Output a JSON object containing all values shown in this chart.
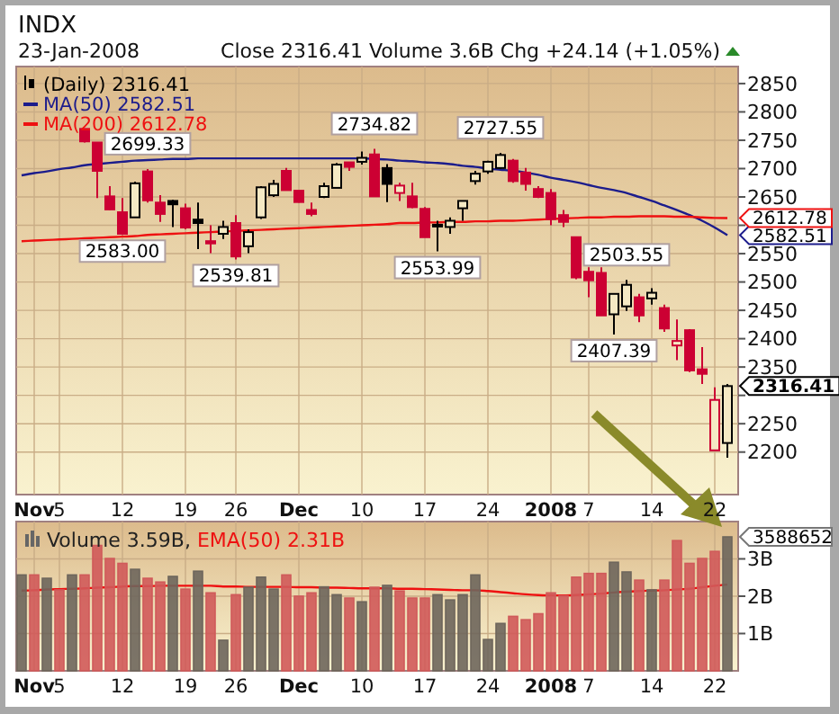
{
  "chart_data": [
    {
      "type": "candlestick",
      "title": "INDX",
      "subtitle": "23-Jan-2008",
      "annotations": [
        "Close 2316.41  Volume 3.6B  Chg +24.14 (+1.05%)",
        {
          "text": "2699.33",
          "y": 2699.33
        },
        {
          "text": "2583.00",
          "y": 2583.0
        },
        {
          "text": "2539.81",
          "y": 2539.81
        },
        {
          "text": "2734.82",
          "y": 2734.82
        },
        {
          "text": "2553.99",
          "y": 2553.99
        },
        {
          "text": "2727.55",
          "y": 2727.55
        },
        {
          "text": "2503.55",
          "y": 2503.55
        },
        {
          "text": "2407.39",
          "y": 2407.39
        }
      ],
      "categories": [
        null,
        "Nov",
        null,
        "5",
        null,
        null,
        null,
        null,
        "12",
        null,
        null,
        null,
        null,
        "19",
        null,
        null,
        null,
        "26",
        null,
        null,
        null,
        null,
        "Dec",
        null,
        null,
        null,
        null,
        "10",
        null,
        null,
        null,
        null,
        "17",
        null,
        null,
        null,
        null,
        "24",
        null,
        null,
        null,
        null,
        "2008",
        null,
        null,
        "7",
        null,
        null,
        null,
        null,
        "14",
        null,
        null,
        null,
        null,
        "22",
        null
      ],
      "ylim": [
        2125,
        2880
      ],
      "yticks": [
        2200,
        2250,
        {
          "value": 2300,
          "label": null
        },
        2350,
        2400,
        2450,
        2500,
        2550,
        {
          "value": 2600,
          "label": null
        },
        2650,
        2700,
        2750,
        2800,
        2850
      ],
      "grid": true,
      "legend": "top left",
      "series": [
        {
          "name": "(Daily) 2316.41",
          "value_labels": [
            null,
            null,
            null,
            null,
            null,
            null,
            null,
            null,
            null,
            null,
            null,
            null,
            null,
            null,
            null,
            null,
            null,
            null,
            null,
            null,
            null,
            null,
            null,
            null,
            null,
            null,
            null,
            null,
            null,
            null,
            null,
            null,
            null,
            null,
            null,
            null,
            null,
            null,
            null,
            null,
            null,
            null,
            null,
            null,
            null,
            null,
            null,
            null,
            null,
            null,
            null,
            null,
            null,
            null,
            null,
            null,
            "2316.41"
          ],
          "colors": [
            null,
            null,
            null,
            null,
            null,
            "#cc0033",
            "#cc0033",
            "#cc0033",
            "#cc0033",
            "#000000",
            "#cc0033",
            "#cc0033",
            "#000000",
            "#cc0033",
            "#000000",
            "#cc0033",
            "#000000",
            "#cc0033",
            "#000000",
            "#000000",
            "#000000",
            "#cc0033",
            "#cc0033",
            "#cc0033",
            "#000000",
            "#000000",
            "#cc0033",
            "#000000",
            "#cc0033",
            "#000000",
            "#cc0033",
            "#cc0033",
            "#cc0033",
            "#000000",
            "#000000",
            "#000000",
            "#000000",
            "#000000",
            "#000000",
            "#cc0033",
            "#cc0033",
            "#cc0033",
            "#cc0033",
            "#cc0033",
            "#cc0033",
            "#cc0033",
            "#cc0033",
            "#000000",
            "#000000",
            "#cc0033",
            "#000000",
            "#cc0033",
            "#cc0033",
            "#cc0033",
            "#cc0033",
            "#cc0033",
            "#000000"
          ],
          "ohlc": [
            null,
            null,
            null,
            null,
            null,
            [
              2770,
              2770,
              2746,
              2748
            ],
            [
              2746,
              2746,
              2648,
              2696
            ],
            [
              2651,
              2669,
              2627,
              2628
            ],
            [
              2623,
              2648,
              2583.0,
              2585
            ],
            [
              2614,
              2677,
              2614,
              2674
            ],
            [
              2695,
              2699.33,
              2640,
              2644
            ],
            [
              2640,
              2653,
              2606,
              2620
            ],
            [
              2643,
              2645,
              2597,
              2637
            ],
            [
              2630,
              2638,
              2593,
              2596
            ],
            [
              2610,
              2640,
              2558,
              2604
            ],
            [
              2572,
              2600,
              2551,
              2568
            ],
            [
              2585,
              2608,
              2576,
              2597
            ],
            [
              2604,
              2618,
              2539.81,
              2545
            ],
            [
              2563,
              2593,
              2551,
              2588
            ],
            [
              2614,
              2669,
              2611,
              2667
            ],
            [
              2653,
              2680,
              2650,
              2673
            ],
            [
              2696,
              2701,
              2662,
              2662
            ],
            [
              2661,
              2661,
              2640,
              2641
            ],
            [
              2627,
              2640,
              2616,
              2620
            ],
            [
              2650,
              2675,
              2648,
              2669
            ],
            [
              2666,
              2710,
              2666,
              2707
            ],
            [
              2711,
              2711,
              2696,
              2703
            ],
            [
              2712,
              2730,
              2707,
              2719
            ],
            [
              2725,
              2734.82,
              2651,
              2651
            ],
            [
              2701,
              2708,
              2641,
              2673
            ],
            [
              2657,
              2675,
              2643,
              2670
            ],
            [
              2651,
              2675,
              2630,
              2632
            ],
            [
              2629,
              2632,
              2579,
              2579
            ],
            [
              2601,
              2608,
              2553.99,
              2598
            ],
            [
              2597,
              2614,
              2585,
              2608
            ],
            [
              2630,
              2643,
              2608,
              2643
            ],
            [
              2678,
              2696,
              2672,
              2691
            ],
            [
              2695,
              2714,
              2691,
              2712
            ],
            [
              2701,
              2727.55,
              2699,
              2724
            ],
            [
              2714,
              2717,
              2675,
              2678
            ],
            [
              2693,
              2701,
              2661,
              2673
            ],
            [
              2664,
              2669,
              2648,
              2650
            ],
            [
              2657,
              2664,
              2600,
              2611
            ],
            [
              2618,
              2627,
              2597,
              2606
            ],
            [
              2579,
              2579,
              2505,
              2508
            ],
            [
              2518,
              2526,
              2473,
              2503
            ],
            [
              2516,
              2526,
              2441,
              2441
            ],
            [
              2443,
              2479,
              2407.39,
              2479
            ],
            [
              2457,
              2503.55,
              2449,
              2495
            ],
            [
              2473,
              2479,
              2429,
              2441
            ],
            [
              2471,
              2489,
              2460,
              2481
            ],
            [
              2454,
              2460,
              2412,
              2418
            ],
            [
              2388,
              2434,
              2362,
              2396
            ],
            [
              2415,
              2417,
              2341,
              2344
            ],
            [
              2346,
              2385,
              2320,
              2338
            ],
            [
              2203,
              2314,
              2203,
              2292
            ],
            [
              2216,
              2320,
              2190,
              2316.41
            ]
          ]
        },
        {
          "type": "line",
          "name": "MA(50) 2582.51",
          "color": "#1c1c8c",
          "value_labels": [
            null,
            null,
            null,
            null,
            null,
            null,
            null,
            null,
            null,
            null,
            null,
            null,
            null,
            null,
            null,
            null,
            null,
            null,
            null,
            null,
            null,
            null,
            null,
            null,
            null,
            null,
            null,
            null,
            null,
            null,
            null,
            null,
            null,
            null,
            null,
            null,
            null,
            null,
            null,
            null,
            null,
            null,
            null,
            null,
            null,
            null,
            null,
            null,
            null,
            null,
            null,
            null,
            null,
            null,
            null,
            null,
            "2582.51"
          ],
          "values": [
            2688,
            2692,
            2695,
            2699,
            2702,
            2706,
            2708,
            2710,
            2712,
            2714,
            2715,
            2716,
            2717,
            2717,
            2718,
            2718,
            2718,
            2718,
            2718,
            2718,
            2718,
            2718,
            2718,
            2718,
            2718,
            2718,
            2718,
            2718,
            2717,
            2716,
            2714,
            2713,
            2711,
            2710,
            2708,
            2705,
            2703,
            2700,
            2698,
            2696,
            2693,
            2689,
            2684,
            2680,
            2676,
            2671,
            2666,
            2662,
            2657,
            2650,
            2643,
            2635,
            2627,
            2618,
            2608,
            2596,
            2582.51
          ]
        },
        {
          "type": "line",
          "name": "MA(200) 2612.78",
          "color": "#ee1111",
          "value_labels": [
            null,
            null,
            null,
            null,
            null,
            null,
            null,
            null,
            null,
            null,
            null,
            null,
            null,
            null,
            null,
            null,
            null,
            null,
            null,
            null,
            null,
            null,
            null,
            null,
            null,
            null,
            null,
            null,
            null,
            null,
            null,
            null,
            null,
            null,
            null,
            null,
            null,
            null,
            null,
            null,
            null,
            null,
            null,
            null,
            null,
            null,
            null,
            null,
            null,
            null,
            null,
            null,
            null,
            null,
            null,
            null,
            "2612.78"
          ],
          "values": [
            2572,
            2573,
            2574,
            2575,
            2576,
            2577,
            2578,
            2579,
            2580,
            2581,
            2583,
            2584,
            2585,
            2586,
            2587,
            2588,
            2589,
            2590,
            2591,
            2592,
            2593,
            2594,
            2595,
            2596,
            2597,
            2598,
            2599,
            2600,
            2601,
            2602,
            2604,
            2604,
            2605,
            2605,
            2606,
            2606,
            2607,
            2607,
            2608,
            2608,
            2609,
            2610,
            2611,
            2612,
            2613,
            2614,
            2614,
            2615,
            2615,
            2616,
            2616,
            2616,
            2615,
            2615,
            2614,
            2613,
            2612.78
          ]
        }
      ]
    },
    {
      "type": "bar",
      "annotations": [
        "3588652"
      ],
      "categories": [
        null,
        "Nov",
        null,
        "5",
        null,
        null,
        null,
        null,
        "12",
        null,
        null,
        null,
        null,
        "19",
        null,
        null,
        null,
        "26",
        null,
        null,
        null,
        null,
        "Dec",
        null,
        null,
        null,
        null,
        "10",
        null,
        null,
        null,
        null,
        "17",
        null,
        null,
        null,
        null,
        "24",
        null,
        null,
        null,
        null,
        "2008",
        null,
        null,
        "7",
        null,
        null,
        null,
        null,
        "14",
        null,
        null,
        null,
        null,
        "22",
        null
      ],
      "ylim": [
        0,
        4
      ],
      "yticks": [
        {
          "value": 1,
          "label": "1B"
        },
        {
          "value": 2,
          "label": "2B"
        },
        {
          "value": 3,
          "label": "3B"
        }
      ],
      "grid": true,
      "legend": "top left",
      "series": [
        {
          "name": "Volume 3.59B,",
          "colors": [
            "#6e665c",
            "#d05a5a",
            "#6e665c",
            "#d05a5a",
            "#6e665c",
            "#d05a5a",
            "#d05a5a",
            "#d05a5a",
            "#d05a5a",
            "#6e665c",
            "#d05a5a",
            "#d05a5a",
            "#6e665c",
            "#d05a5a",
            "#6e665c",
            "#d05a5a",
            "#6e665c",
            "#d05a5a",
            "#6e665c",
            "#6e665c",
            "#6e665c",
            "#d05a5a",
            "#d05a5a",
            "#d05a5a",
            "#6e665c",
            "#6e665c",
            "#d05a5a",
            "#6e665c",
            "#d05a5a",
            "#6e665c",
            "#d05a5a",
            "#d05a5a",
            "#d05a5a",
            "#6e665c",
            "#6e665c",
            "#6e665c",
            "#6e665c",
            "#6e665c",
            "#6e665c",
            "#d05a5a",
            "#d05a5a",
            "#d05a5a",
            "#d05a5a",
            "#d05a5a",
            "#d05a5a",
            "#d05a5a",
            "#d05a5a",
            "#6e665c",
            "#6e665c",
            "#d05a5a",
            "#6e665c",
            "#d05a5a",
            "#d05a5a",
            "#d05a5a",
            "#d05a5a",
            "#d05a5a",
            "#6e665c"
          ],
          "values": [
            2.57,
            2.57,
            2.48,
            2.17,
            2.57,
            2.57,
            3.36,
            3.01,
            2.88,
            2.72,
            2.48,
            2.38,
            2.53,
            2.19,
            2.67,
            2.09,
            0.82,
            2.04,
            2.24,
            2.51,
            2.19,
            2.57,
            2.0,
            2.09,
            2.25,
            2.04,
            1.95,
            1.85,
            2.24,
            2.29,
            2.14,
            1.95,
            1.95,
            2.04,
            1.9,
            2.04,
            2.57,
            0.84,
            1.27,
            1.46,
            1.37,
            1.53,
            2.09,
            2.01,
            2.51,
            2.61,
            2.61,
            2.91,
            2.65,
            2.43,
            2.17,
            2.43,
            3.49,
            2.88,
            3.01,
            3.2,
            3.59
          ]
        },
        {
          "type": "line",
          "name": "EMA(50) 2.31B",
          "color": "#ee1111",
          "values": [
            2.15,
            2.16,
            2.18,
            2.19,
            2.2,
            2.21,
            2.23,
            2.24,
            2.26,
            2.27,
            2.27,
            2.28,
            2.28,
            2.28,
            2.28,
            2.28,
            2.26,
            2.26,
            2.25,
            2.25,
            2.25,
            2.25,
            2.24,
            2.24,
            2.23,
            2.23,
            2.22,
            2.21,
            2.21,
            2.21,
            2.2,
            2.2,
            2.19,
            2.18,
            2.17,
            2.16,
            2.16,
            2.14,
            2.11,
            2.08,
            2.05,
            2.03,
            2.02,
            2.02,
            2.03,
            2.05,
            2.07,
            2.1,
            2.12,
            2.14,
            2.15,
            2.16,
            2.18,
            2.2,
            2.24,
            2.28,
            2.31
          ]
        }
      ]
    }
  ]
}
